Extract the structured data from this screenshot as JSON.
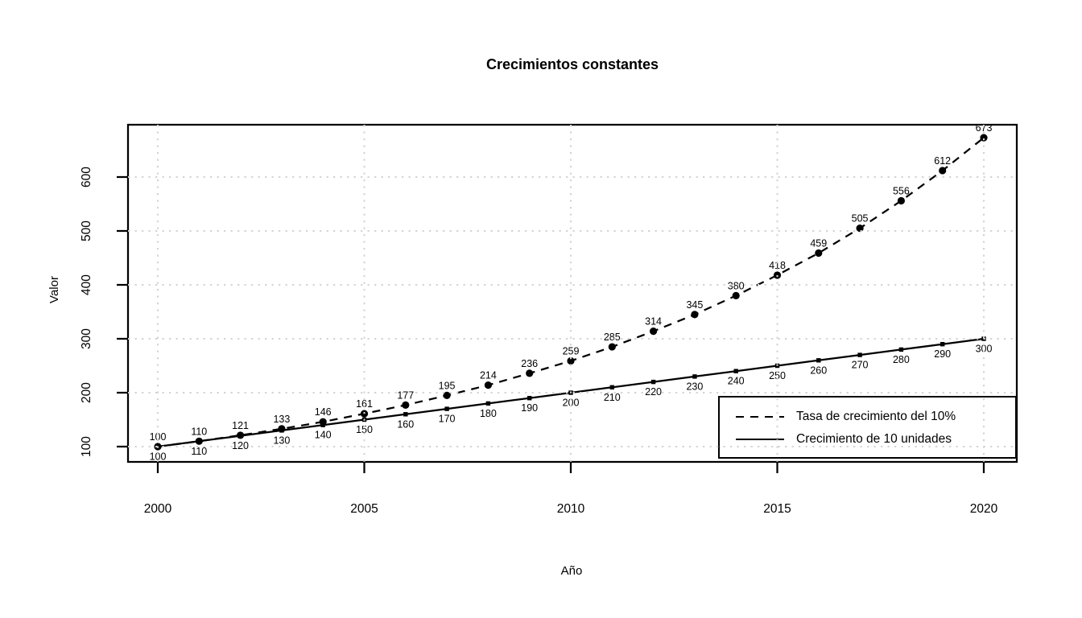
{
  "chart_data": {
    "type": "line",
    "title": "Crecimientos constantes",
    "xlabel": "Año",
    "ylabel": "Valor",
    "x": [
      2000,
      2001,
      2002,
      2003,
      2004,
      2005,
      2006,
      2007,
      2008,
      2009,
      2010,
      2011,
      2012,
      2013,
      2014,
      2015,
      2016,
      2017,
      2018,
      2019,
      2020
    ],
    "x_ticks": [
      2000,
      2005,
      2010,
      2015,
      2020
    ],
    "y_ticks": [
      100,
      200,
      300,
      400,
      500,
      600
    ],
    "xlim": [
      2000,
      2020
    ],
    "ylim": [
      100,
      673
    ],
    "grid": "dotted",
    "legend_position": "bottom-right",
    "series": [
      {
        "name": "Tasa de crecimiento del 10%",
        "line_style": "dashed",
        "marker": "circle",
        "label_position": "above",
        "color": "#000000",
        "values": [
          100,
          110,
          121,
          133,
          146,
          161,
          177,
          195,
          214,
          236,
          259,
          285,
          314,
          345,
          380,
          418,
          459,
          505,
          556,
          612,
          673
        ]
      },
      {
        "name": "Crecimiento de 10 unidades",
        "line_style": "solid",
        "marker": "square",
        "label_position": "below",
        "color": "#000000",
        "values": [
          100,
          110,
          120,
          130,
          140,
          150,
          160,
          170,
          180,
          190,
          200,
          210,
          220,
          230,
          240,
          250,
          260,
          270,
          280,
          290,
          300
        ]
      }
    ],
    "colors": {
      "foreground": "#000000",
      "grid": "#D4D4D4",
      "background": "#FFFFFF"
    }
  }
}
